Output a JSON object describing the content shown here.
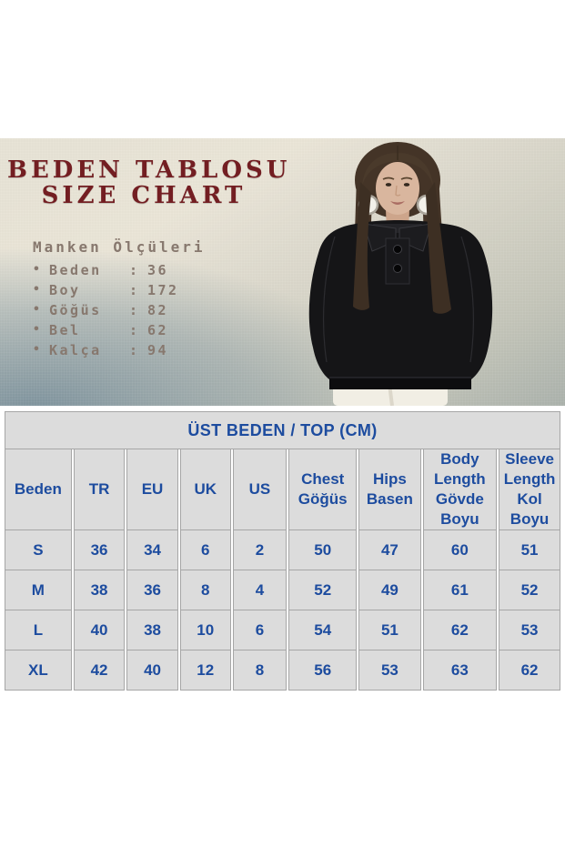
{
  "hero": {
    "title_line1": "BEDEN TABLOSU",
    "title_line2": "SIZE CHART",
    "measurements": {
      "title": "Manken Ölçüleri",
      "bullet": "•",
      "colon": ":",
      "items": [
        {
          "label": "Beden",
          "value": "36"
        },
        {
          "label": "Boy",
          "value": "172"
        },
        {
          "label": "Göğüs",
          "value": "82"
        },
        {
          "label": "Bel",
          "value": "62"
        },
        {
          "label": "Kalça",
          "value": "94"
        }
      ]
    }
  },
  "size_table": {
    "title": "ÜST BEDEN / TOP (CM)",
    "columns": [
      "Beden",
      "TR",
      "EU",
      "UK",
      "US",
      "Chest\nGöğüs",
      "Hips\nBasen",
      "Body\nLength\nGövde\nBoyu",
      "Sleeve\nLength\nKol Boyu"
    ],
    "rows": [
      [
        "S",
        "36",
        "34",
        "6",
        "2",
        "50",
        "47",
        "60",
        "51"
      ],
      [
        "M",
        "38",
        "36",
        "8",
        "4",
        "52",
        "49",
        "61",
        "52"
      ],
      [
        "L",
        "40",
        "38",
        "10",
        "6",
        "54",
        "51",
        "62",
        "53"
      ],
      [
        "XL",
        "42",
        "40",
        "12",
        "8",
        "56",
        "53",
        "63",
        "62"
      ]
    ]
  },
  "colors": {
    "accent_maroon": "#731e22",
    "list_text": "#87786e",
    "table_text_blue": "#1d4c9f",
    "table_cell_bg": "#dcdcdc",
    "table_cell_border": "#a6a6a6"
  }
}
